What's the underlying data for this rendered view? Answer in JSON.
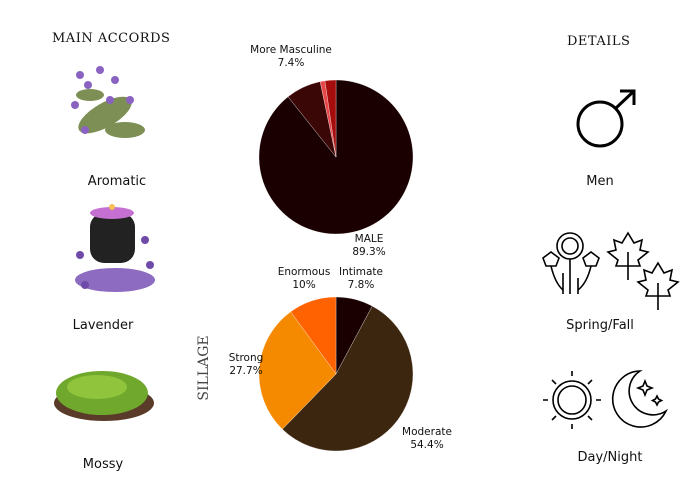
{
  "headers": {
    "main_accords": "MAIN ACCORDS",
    "details": "DETAILS"
  },
  "accords": [
    {
      "label": "Aromatic",
      "icon": "sage-herb-image"
    },
    {
      "label": "Lavender",
      "icon": "lavender-candle-image"
    },
    {
      "label": "Mossy",
      "icon": "moss-image"
    }
  ],
  "details": [
    {
      "label": "Men",
      "icon": "male-symbol-icon"
    },
    {
      "label": "Spring/Fall",
      "icon": "flowers-leaves-icon"
    },
    {
      "label": "Day/Night",
      "icon": "sun-moon-icon"
    }
  ],
  "chart_data": [
    {
      "type": "pie",
      "direction": "clockwise",
      "start": "12 o'clock",
      "slices": [
        {
          "label": "MALE",
          "value": 89.3,
          "value_label": "89.3%",
          "color": "#1a0000"
        },
        {
          "label": "More Masculine",
          "value": 7.4,
          "value_label": "7.4%",
          "color": "#3a0606"
        },
        {
          "value": 1.0,
          "color": "#e8474a"
        },
        {
          "value": 2.3,
          "color": "#a50c0c"
        }
      ]
    },
    {
      "type": "pie",
      "title": "SILLAGE",
      "direction": "clockwise",
      "start": "12 o'clock",
      "slices": [
        {
          "label": "Intimate",
          "value": 7.8,
          "value_label": "7.8%",
          "color": "#1a0000"
        },
        {
          "label": "Moderate",
          "value": 54.4,
          "value_label": "54.4%",
          "color": "#3d2610"
        },
        {
          "label": "Strong",
          "value": 27.7,
          "value_label": "27.7%",
          "color": "#f58a00"
        },
        {
          "label": "Enormous",
          "value": 10,
          "value_label": "10%",
          "color": "#ff6200"
        }
      ]
    }
  ]
}
